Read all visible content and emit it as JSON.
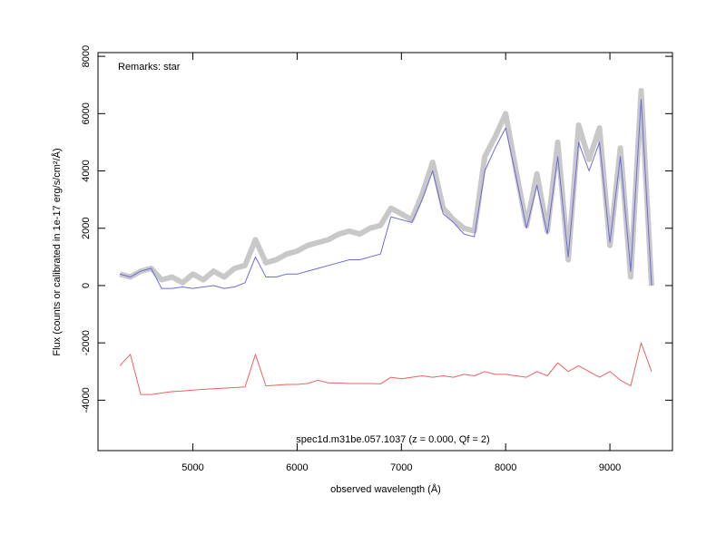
{
  "chart_data": {
    "type": "line",
    "remarks": "Remarks: star",
    "annotation": "spec1d.m31be.057.1037 (z = 0.000, Qf = 2)",
    "x_label": "observed wavelength (Å)",
    "y_label": "Flux (counts or calibrated in 1e-17 erg/s/cm²/Å)",
    "xlim": [
      4090,
      9600
    ],
    "ylim": [
      -5760,
      8130
    ],
    "xticks": [
      5000,
      6000,
      7000,
      8000,
      9000
    ],
    "yticks": [
      -4000,
      -2000,
      0,
      2000,
      4000,
      6000,
      8000
    ],
    "x": [
      4300,
      4400,
      4500,
      4600,
      4700,
      4800,
      4900,
      5000,
      5100,
      5200,
      5300,
      5400,
      5500,
      5600,
      5700,
      5800,
      5900,
      6000,
      6100,
      6200,
      6300,
      6400,
      6500,
      6600,
      6700,
      6800,
      6900,
      7000,
      7100,
      7200,
      7300,
      7400,
      7500,
      7600,
      7700,
      7800,
      7900,
      8000,
      8100,
      8200,
      8300,
      8400,
      8500,
      8600,
      8700,
      8800,
      8900,
      9000,
      9100,
      9200,
      9300,
      9400
    ],
    "series": [
      {
        "color": "#c8c8c8",
        "width": 6,
        "values": [
          400,
          300,
          500,
          600,
          200,
          300,
          100,
          400,
          200,
          500,
          300,
          600,
          700,
          1600,
          800,
          900,
          1100,
          1200,
          1400,
          1500,
          1600,
          1800,
          1900,
          1800,
          2000,
          2100,
          2700,
          2500,
          2300,
          3200,
          4300,
          2700,
          2300,
          2000,
          1900,
          4500,
          5200,
          6000,
          4000,
          2100,
          3900,
          1900,
          5000,
          900,
          5600,
          4400,
          5500,
          1400,
          4800,
          300,
          6800,
          0
        ]
      },
      {
        "color": "#6b6be0",
        "width": 1,
        "values": [
          400,
          300,
          500,
          600,
          -100,
          -100,
          -50,
          -100,
          -50,
          0,
          -100,
          -50,
          100,
          1000,
          300,
          300,
          400,
          400,
          500,
          600,
          700,
          800,
          900,
          900,
          1000,
          1100,
          2400,
          2300,
          2200,
          3000,
          4000,
          2500,
          2200,
          1800,
          1700,
          4000,
          4800,
          5500,
          3800,
          2000,
          3500,
          1800,
          4500,
          1000,
          5000,
          4000,
          5000,
          1500,
          4500,
          500,
          6500,
          0
        ]
      },
      {
        "color": "#f06060",
        "width": 1,
        "values": [
          -2800,
          -2400,
          -3800,
          -3800,
          -3750,
          -3700,
          -3680,
          -3650,
          -3620,
          -3600,
          -3580,
          -3560,
          -3540,
          -2400,
          -3500,
          -3480,
          -3450,
          -3450,
          -3420,
          -3300,
          -3400,
          -3400,
          -3420,
          -3420,
          -3420,
          -3430,
          -3200,
          -3250,
          -3200,
          -3150,
          -3200,
          -3150,
          -3200,
          -3100,
          -3150,
          -3000,
          -3100,
          -3100,
          -3150,
          -3200,
          -3000,
          -3150,
          -2700,
          -3000,
          -2800,
          -3000,
          -3200,
          -3000,
          -3300,
          -3500,
          -2000,
          -3000
        ]
      }
    ]
  }
}
